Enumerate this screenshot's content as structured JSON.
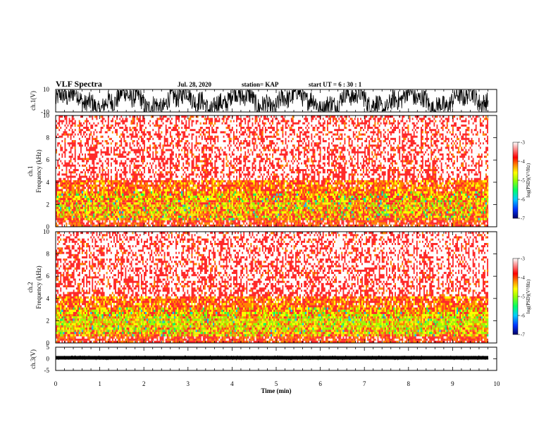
{
  "header": {
    "title": "VLF Spectra",
    "date": "Jul. 28, 2020",
    "station": "station= KAP",
    "start": "start  UT  =  6 : 30 : 1"
  },
  "chart_data": [
    {
      "type": "line",
      "name": "ch1-waveform",
      "ylabel": "ch.1(V)",
      "ylim": [
        -10,
        10
      ],
      "yticks": [
        "10",
        "-10"
      ],
      "xlim": [
        0,
        10
      ]
    },
    {
      "type": "heatmap",
      "name": "ch1-spectrogram",
      "ylabel": "ch.1\nFrequency (kHz)",
      "ylim": [
        0,
        10
      ],
      "yticks": [
        "0",
        "2",
        "4",
        "6",
        "8",
        "10"
      ],
      "xlim": [
        0,
        10
      ],
      "colorbar": {
        "label": "log(PSD)(V²/Hz)",
        "range": [
          -7,
          -3
        ],
        "ticks": [
          "-3",
          "-4",
          "-5",
          "-6",
          "-7"
        ]
      }
    },
    {
      "type": "heatmap",
      "name": "ch2-spectrogram",
      "ylabel": "ch.2\nFrequency (kHz)",
      "ylim": [
        0,
        10
      ],
      "yticks": [
        "0",
        "2",
        "4",
        "6",
        "8",
        "10"
      ],
      "xlim": [
        0,
        10
      ],
      "colorbar": {
        "label": "log(PSD)(V²/Hz)",
        "range": [
          -7,
          -3
        ],
        "ticks": [
          "-3",
          "-4",
          "-5",
          "-6",
          "-7"
        ]
      }
    },
    {
      "type": "line",
      "name": "ch3-waveform",
      "ylabel": "ch.3(V)",
      "ylim": [
        -5,
        5
      ],
      "yticks": [
        "5",
        "0",
        "-5"
      ],
      "xlim": [
        0,
        10
      ],
      "xlabel": "Time (min)",
      "xticks": [
        "0",
        "1",
        "2",
        "3",
        "4",
        "5",
        "6",
        "7",
        "8",
        "9",
        "10"
      ]
    }
  ],
  "colors": {
    "colormap": [
      "#000066",
      "#0033ff",
      "#00ccff",
      "#00ff66",
      "#99ff00",
      "#ffff00",
      "#ff8800",
      "#ff0000",
      "#ffffff"
    ]
  }
}
